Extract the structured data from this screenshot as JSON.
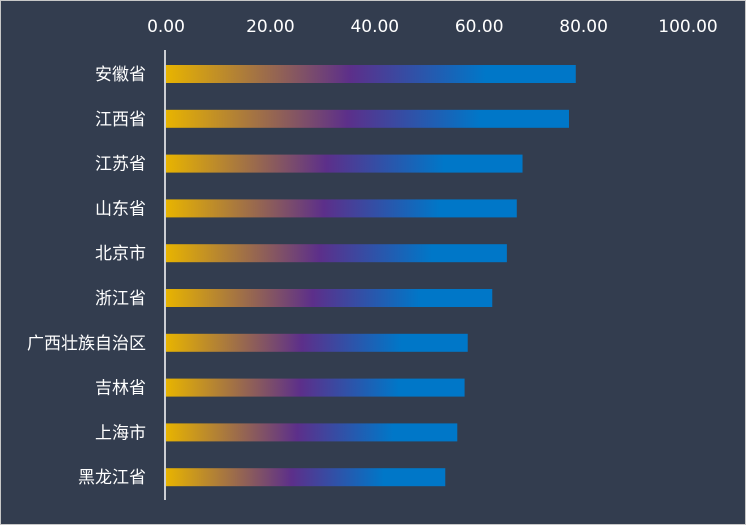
{
  "chart_data": {
    "type": "bar",
    "orientation": "horizontal",
    "categories": [
      "安徽省",
      "江西省",
      "江苏省",
      "山东省",
      "北京市",
      "浙江省",
      "广西壮族自治区",
      "吉林省",
      "上海市",
      "黑龙江省"
    ],
    "values": [
      78.5,
      77.2,
      68.3,
      67.2,
      65.3,
      62.5,
      57.8,
      57.2,
      55.8,
      53.5
    ],
    "xlim": [
      0,
      100
    ],
    "xticks": [
      "0.00",
      "20.00",
      "40.00",
      "60.00",
      "80.00",
      "100.00"
    ],
    "xaxis_position": "top",
    "grid": false,
    "title": "",
    "xlabel": "",
    "ylabel": "",
    "colors": {
      "background": "#333d4f",
      "gradient_start": "#e8b400",
      "gradient_mid": "#5c2f8a",
      "gradient_end": "#0077c8",
      "axis_line": "#ffffff",
      "text": "#ffffff"
    }
  }
}
